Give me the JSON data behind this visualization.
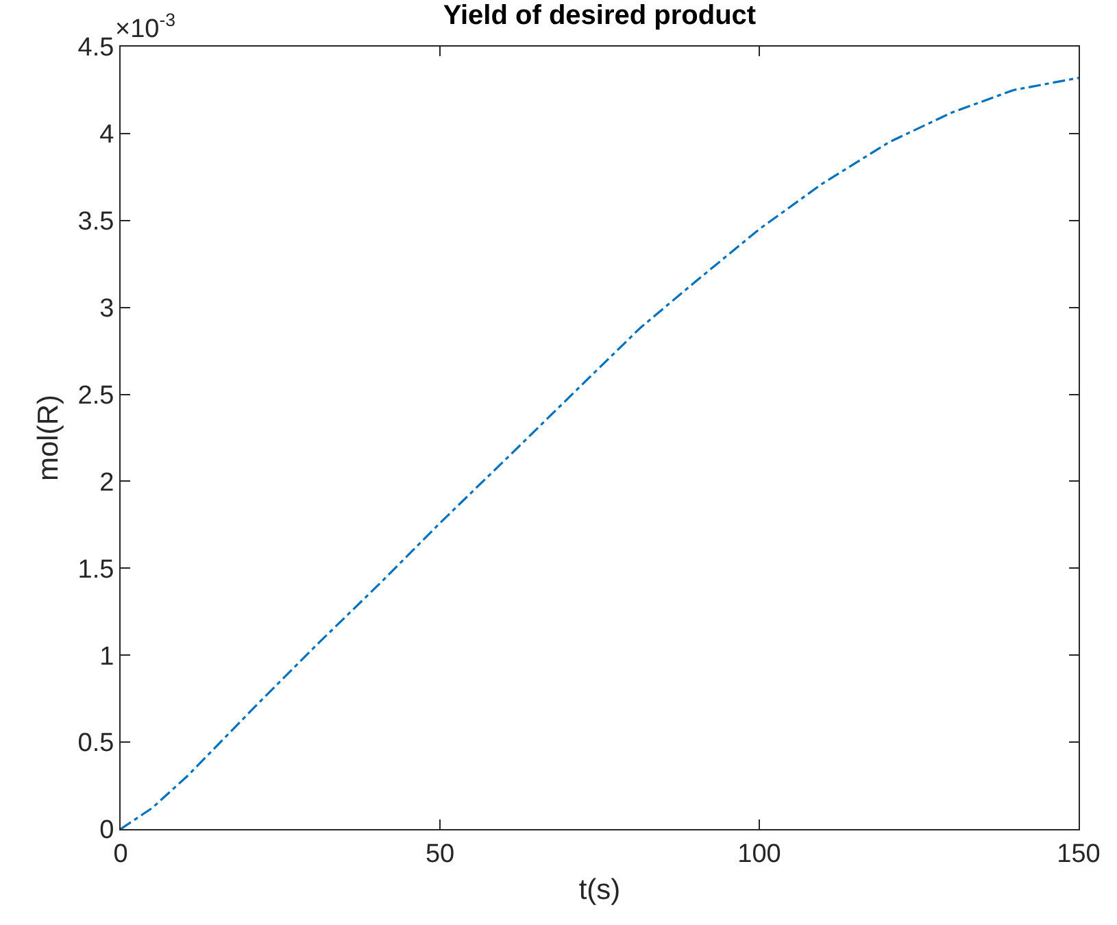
{
  "chart_data": {
    "type": "line",
    "title": "Yield of desired product",
    "xlabel": "t(s)",
    "ylabel": "mol(R)",
    "annotations": [
      "×10$^{-3}$"
    ],
    "x": [
      0,
      4.9,
      10.6,
      21.2,
      31,
      40.8,
      50,
      60.4,
      73.2,
      81.3,
      89.4,
      100,
      109.8,
      120.3,
      130.1,
      139.8,
      150
    ],
    "series": [
      {
        "color": "#0072bd",
        "values": [
          0,
          0.12,
          0.31,
          0.71,
          1.07,
          1.42,
          1.76,
          2.13,
          2.59,
          2.88,
          3.13,
          3.45,
          3.71,
          3.95,
          4.12,
          4.25,
          4.32
        ]
      }
    ],
    "xlim": [
      0,
      150
    ],
    "xticks": [
      0,
      50,
      100,
      150
    ],
    "ylim": [
      0,
      4.5
    ],
    "yticks": [
      0,
      0.5,
      1,
      1.5,
      2,
      2.5,
      3,
      3.5,
      4,
      4.5
    ],
    "grid": false,
    "marker": "none",
    "line_style": "dashdot"
  }
}
